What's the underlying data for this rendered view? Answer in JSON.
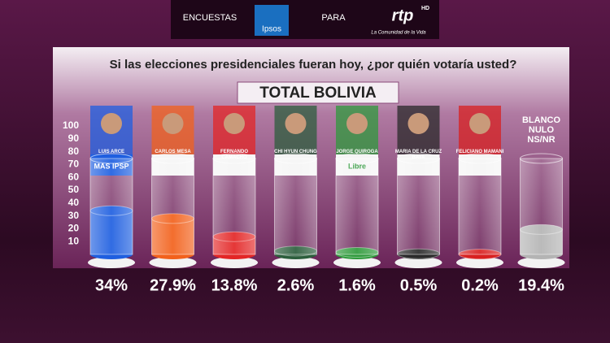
{
  "header": {
    "left": "ENCUESTAS",
    "pollster": "Ipsos",
    "middle": "PARA",
    "channel": "rtp",
    "channel_badge": "HD",
    "slogan": "La Comunidad de la Vida"
  },
  "chart_data": {
    "type": "bar",
    "title": "Si las elecciones presidenciales fueran hoy, ¿por quién votaría usted?",
    "subtitle": "TOTAL BOLIVIA",
    "categories": [
      "LUIS ARCE",
      "CARLOS MESA",
      "FERNANDO CAMACHO",
      "CHI HYUN CHUNG",
      "JORGE QUIROGA",
      "MARIA DE LA CRUZ BAYA",
      "FELICIANO MAMANI",
      "BLANCO NULO NS/NR"
    ],
    "party_labels": [
      "MAS IPSP",
      null,
      null,
      null,
      "Libre",
      null,
      null,
      null
    ],
    "values": [
      34,
      27.9,
      13.8,
      2.6,
      1.6,
      0.5,
      0.2,
      19.4
    ],
    "value_labels": [
      "34%",
      "27.9%",
      "13.8%",
      "2.6%",
      "1.6%",
      "0.5%",
      "0.2%",
      "19.4%"
    ],
    "colors": [
      "#1f5fe0",
      "#f2611c",
      "#e32626",
      "#2c5e3c",
      "#2f9a3c",
      "#2a2a2a",
      "#d82020",
      "#b4b4b4"
    ],
    "ylim": [
      0,
      100
    ],
    "yticks": [
      10,
      20,
      30,
      40,
      50,
      60,
      70,
      80,
      90,
      100
    ],
    "grid": false
  }
}
